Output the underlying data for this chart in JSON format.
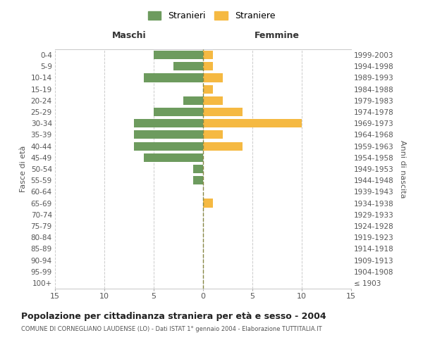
{
  "age_groups": [
    "100+",
    "95-99",
    "90-94",
    "85-89",
    "80-84",
    "75-79",
    "70-74",
    "65-69",
    "60-64",
    "55-59",
    "50-54",
    "45-49",
    "40-44",
    "35-39",
    "30-34",
    "25-29",
    "20-24",
    "15-19",
    "10-14",
    "5-9",
    "0-4"
  ],
  "birth_years": [
    "≤ 1903",
    "1904-1908",
    "1909-1913",
    "1914-1918",
    "1919-1923",
    "1924-1928",
    "1929-1933",
    "1934-1938",
    "1939-1943",
    "1944-1948",
    "1949-1953",
    "1954-1958",
    "1959-1963",
    "1964-1968",
    "1969-1973",
    "1974-1978",
    "1979-1983",
    "1984-1988",
    "1989-1993",
    "1994-1998",
    "1999-2003"
  ],
  "males": [
    0,
    0,
    0,
    0,
    0,
    0,
    0,
    0,
    0,
    1,
    1,
    6,
    7,
    7,
    7,
    5,
    2,
    0,
    6,
    3,
    5
  ],
  "females": [
    0,
    0,
    0,
    0,
    0,
    0,
    0,
    1,
    0,
    0,
    0,
    0,
    4,
    2,
    10,
    4,
    2,
    1,
    2,
    1,
    1
  ],
  "male_color": "#6d9b5e",
  "female_color": "#f5b942",
  "grid_color": "#cccccc",
  "center_line_color": "#888844",
  "title": "Popolazione per cittadinanza straniera per età e sesso - 2004",
  "subtitle": "COMUNE DI CORNEGLIANO LAUDENSE (LO) - Dati ISTAT 1° gennaio 2004 - Elaborazione TUTTITALIA.IT",
  "xlabel_left": "Maschi",
  "xlabel_right": "Femmine",
  "ylabel_left": "Fasce di età",
  "ylabel_right": "Anni di nascita",
  "legend_male": "Stranieri",
  "legend_female": "Straniere",
  "xlim": 15,
  "background_color": "#ffffff"
}
